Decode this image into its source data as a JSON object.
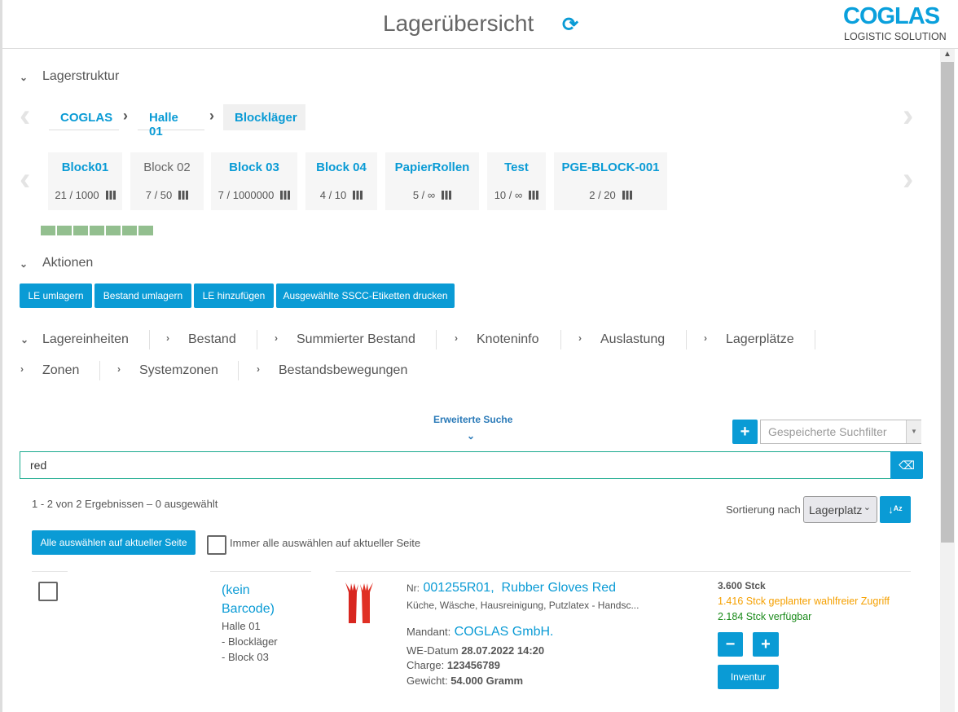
{
  "header": {
    "title": "Lagerübersicht",
    "refresh_icon": "refresh-icon",
    "logo_main": "COGLAS",
    "logo_sub": "LOGISTIC SOLUTION"
  },
  "colors": {
    "accent": "#0a9bd5",
    "search_border": "#1aaa8e",
    "occupancy": "#93bf8f",
    "warning": "#f5a000",
    "success": "#1a8a1a"
  },
  "structure": {
    "label": "Lagerstruktur",
    "breadcrumb": [
      "COGLAS",
      "Halle 01",
      "Blockläger"
    ],
    "blocks": [
      {
        "name": "Block01",
        "count": "21 /  1000"
      },
      {
        "name": "Block 02",
        "count": "7 /  50"
      },
      {
        "name": "Block 03",
        "count": "7 /  1000000"
      },
      {
        "name": "Block 04",
        "count": "4 /  10"
      },
      {
        "name": "PapierRollen",
        "count": "5 /  ∞"
      },
      {
        "name": "Test",
        "count": "10 /  ∞"
      },
      {
        "name": "PGE-BLOCK-001",
        "count": "2 /  20"
      }
    ]
  },
  "actions": {
    "label": "Aktionen",
    "buttons": [
      "LE umlagern",
      "Bestand umlagern",
      "LE hinzufügen",
      "Ausgewählte SSCC-Etiketten drucken"
    ]
  },
  "tabs": {
    "row1": [
      "Lagereinheiten",
      "Bestand",
      "Summierter Bestand",
      "Knoteninfo",
      "Auslastung",
      "Lagerplätze"
    ],
    "row2": [
      "Zonen",
      "Systemzonen",
      "Bestandsbewegungen"
    ]
  },
  "search": {
    "advanced": "Erweiterte Suche",
    "saved_filter_placeholder": "Gespeicherte Suchfilter",
    "value": "red"
  },
  "results": {
    "summary": "1 - 2 von 2 Ergebnissen  –  0 ausgewählt",
    "sort_label": "Sortierung nach",
    "sort_value": "Lagerplatz",
    "select_all": "Alle auswählen auf aktueller Seite",
    "always_select": "Immer alle auswählen auf aktueller Seite"
  },
  "item": {
    "barcode_line1": "(kein",
    "barcode_line2": "Barcode)",
    "loc1": "Halle 01",
    "loc2": "- Blockläger",
    "loc3": "- Block 03",
    "nr_label": "Nr:",
    "nr": "001255R01,",
    "name": "Rubber Gloves Red",
    "desc": "Küche, Wäsche, Hausreinigung, Putzlatex - Handsc...",
    "mandant_label": "Mandant:",
    "mandant": "COGLAS GmbH.",
    "we_label": "WE-Datum",
    "we": "28.07.2022 14:20",
    "charge_label": "Charge:",
    "charge": "123456789",
    "gewicht_label": "Gewicht:",
    "gewicht": "54.000 Gramm",
    "qty": "3.600 Stck",
    "planned": "1.416 Stck geplanter wahlfreier Zugriff",
    "available": "2.184 Stck verfügbar",
    "minus": "−",
    "plus": "+",
    "inventur": "Inventur"
  }
}
